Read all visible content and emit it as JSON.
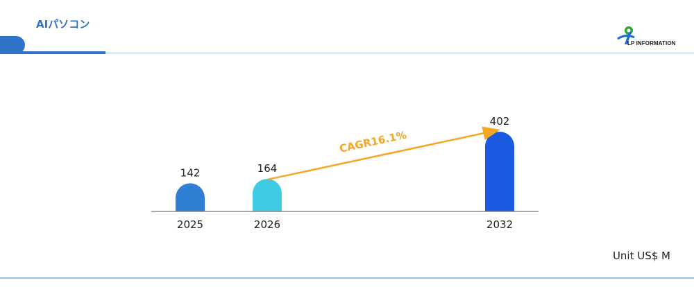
{
  "header": {
    "title": "AIパソコン"
  },
  "logo": {
    "text": "LP INFORMATION"
  },
  "unit": "Unit US$ M",
  "colors": {
    "accent": "#2f74c8",
    "arrow": "#f5a623"
  },
  "chart_data": {
    "type": "bar",
    "categories": [
      "2025",
      "2026",
      "2032"
    ],
    "values": [
      142,
      164,
      402
    ],
    "bar_colors": [
      "#2f7fd4",
      "#3ecbe3",
      "#1a5ae0"
    ],
    "annotation": {
      "text": "CAGR16.1%",
      "from": "2026",
      "to": "2032",
      "color": "#f5a623"
    },
    "title": "",
    "xlabel": "",
    "ylabel": "",
    "ylim": [
      0,
      402
    ],
    "grid": false,
    "legend": "none"
  }
}
